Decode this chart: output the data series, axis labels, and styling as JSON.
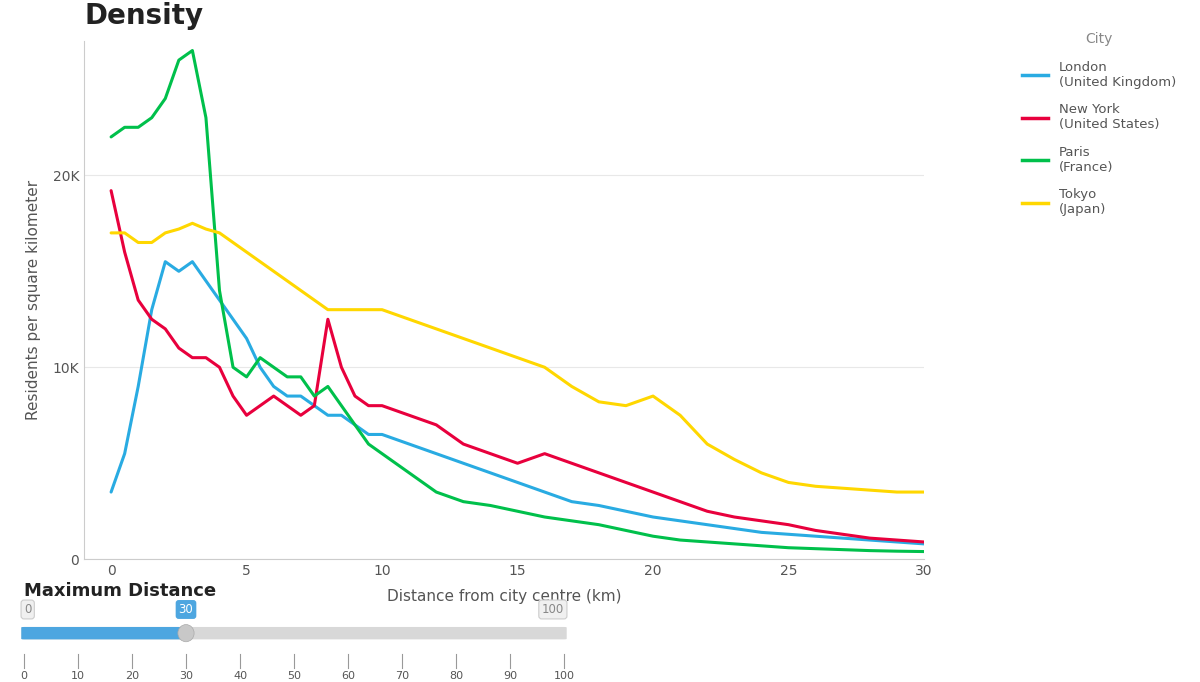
{
  "title": "Density",
  "xlabel": "Distance from city centre (km)",
  "ylabel": "Residents per square kilometer",
  "background_color": "#ffffff",
  "cities": {
    "London": {
      "color": "#29ABE2",
      "x": [
        0,
        0.5,
        1,
        1.5,
        2,
        2.5,
        3,
        3.5,
        4,
        4.5,
        5,
        5.5,
        6,
        6.5,
        7,
        7.5,
        8,
        8.5,
        9,
        9.5,
        10,
        11,
        12,
        13,
        14,
        15,
        16,
        17,
        18,
        19,
        20,
        21,
        22,
        23,
        24,
        25,
        26,
        27,
        28,
        29,
        30
      ],
      "y": [
        3500,
        5500,
        9000,
        13000,
        15500,
        15000,
        15500,
        14500,
        13500,
        12500,
        11500,
        10000,
        9000,
        8500,
        8500,
        8000,
        7500,
        7500,
        7000,
        6500,
        6500,
        6000,
        5500,
        5000,
        4500,
        4000,
        3500,
        3000,
        2800,
        2500,
        2200,
        2000,
        1800,
        1600,
        1400,
        1300,
        1200,
        1100,
        1000,
        900,
        800
      ]
    },
    "New York": {
      "color": "#E8003D",
      "x": [
        0,
        0.5,
        1,
        1.5,
        2,
        2.5,
        3,
        3.5,
        4,
        4.5,
        5,
        5.5,
        6,
        6.5,
        7,
        7.5,
        8,
        8.5,
        9,
        9.5,
        10,
        11,
        12,
        13,
        14,
        15,
        16,
        17,
        18,
        19,
        20,
        21,
        22,
        23,
        24,
        25,
        26,
        27,
        28,
        29,
        30
      ],
      "y": [
        19200,
        16000,
        13500,
        12500,
        12000,
        11000,
        10500,
        10500,
        10000,
        8500,
        7500,
        8000,
        8500,
        8000,
        7500,
        8000,
        12500,
        10000,
        8500,
        8000,
        8000,
        7500,
        7000,
        6000,
        5500,
        5000,
        5500,
        5000,
        4500,
        4000,
        3500,
        3000,
        2500,
        2200,
        2000,
        1800,
        1500,
        1300,
        1100,
        1000,
        900
      ]
    },
    "Paris": {
      "color": "#00C04B",
      "x": [
        0,
        0.5,
        1,
        1.5,
        2,
        2.5,
        3,
        3.5,
        4,
        4.5,
        5,
        5.5,
        6,
        6.5,
        7,
        7.5,
        8,
        8.5,
        9,
        9.5,
        10,
        11,
        12,
        13,
        14,
        15,
        16,
        17,
        18,
        19,
        20,
        21,
        22,
        23,
        24,
        25,
        26,
        27,
        28,
        29,
        30
      ],
      "y": [
        22000,
        22500,
        22500,
        23000,
        24000,
        26000,
        26500,
        23000,
        14000,
        10000,
        9500,
        10500,
        10000,
        9500,
        9500,
        8500,
        9000,
        8000,
        7000,
        6000,
        5500,
        4500,
        3500,
        3000,
        2800,
        2500,
        2200,
        2000,
        1800,
        1500,
        1200,
        1000,
        900,
        800,
        700,
        600,
        550,
        500,
        450,
        420,
        400
      ]
    },
    "Tokyo": {
      "color": "#FFD700",
      "x": [
        0,
        0.5,
        1,
        1.5,
        2,
        2.5,
        3,
        3.5,
        4,
        4.5,
        5,
        5.5,
        6,
        6.5,
        7,
        7.5,
        8,
        8.5,
        9,
        9.5,
        10,
        11,
        12,
        13,
        14,
        15,
        16,
        17,
        18,
        19,
        20,
        21,
        22,
        23,
        24,
        25,
        26,
        27,
        28,
        29,
        30
      ],
      "y": [
        17000,
        17000,
        16500,
        16500,
        17000,
        17200,
        17500,
        17200,
        17000,
        16500,
        16000,
        15500,
        15000,
        14500,
        14000,
        13500,
        13000,
        13000,
        13000,
        13000,
        13000,
        12500,
        12000,
        11500,
        11000,
        10500,
        10000,
        9000,
        8200,
        8000,
        8500,
        7500,
        6000,
        5200,
        4500,
        4000,
        3800,
        3700,
        3600,
        3500,
        3500
      ]
    }
  },
  "legend_title": "City",
  "legend_entries": [
    {
      "label": "London\n(United Kingdom)",
      "color": "#29ABE2"
    },
    {
      "label": "New York\n(United States)",
      "color": "#E8003D"
    },
    {
      "label": "Paris\n(France)",
      "color": "#00C04B"
    },
    {
      "label": "Tokyo\n(Japan)",
      "color": "#FFD700"
    }
  ],
  "xlim": [
    -1,
    30
  ],
  "ylim": [
    0,
    27000
  ],
  "yticks": [
    0,
    10000,
    20000
  ],
  "ytick_labels": [
    "0",
    "10K",
    "20K"
  ],
  "xticks": [
    0,
    5,
    10,
    15,
    20,
    25,
    30
  ],
  "slider_label": "Maximum Distance",
  "slider_min": 0,
  "slider_max": 100,
  "slider_value": 30,
  "slider_color": "#4DA6E0",
  "title_fontsize": 20,
  "label_fontsize": 11,
  "tick_fontsize": 10,
  "line_width": 2.2
}
